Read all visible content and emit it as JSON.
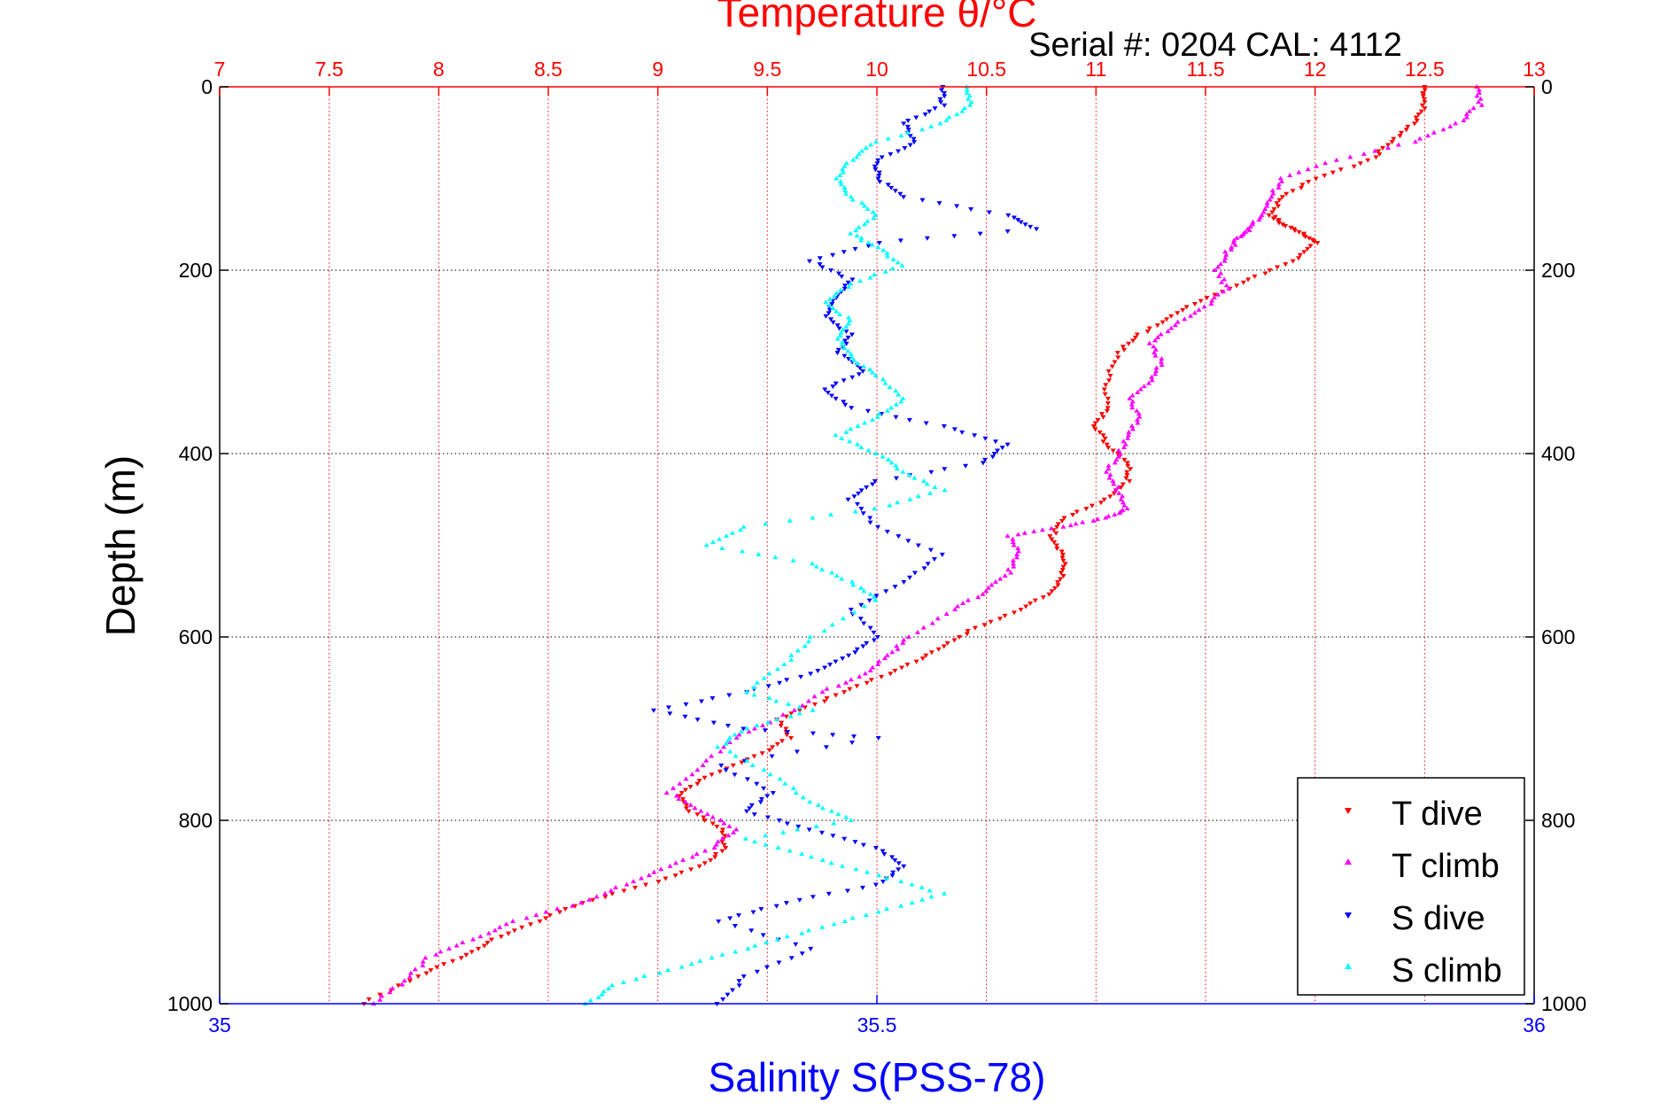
{
  "chart_data": {
    "type": "scatter",
    "title": "Temperature θ/°C",
    "serial_label": "Serial #: 0204  CAL: 4112",
    "xlabel_top": "Temperature θ/°C",
    "xlabel_bottom": "Salinity S(PSS-78)",
    "ylabel": "Depth (m)",
    "x_top_lim": [
      7,
      13
    ],
    "x_top_ticks": [
      "7",
      "7.5",
      "8",
      "8.5",
      "9",
      "9.5",
      "10",
      "10.5",
      "11",
      "11.5",
      "12",
      "12.5",
      "13"
    ],
    "x_bottom_lim": [
      35,
      36
    ],
    "x_bottom_ticks": [
      "35",
      "35.5",
      "36"
    ],
    "ylim": [
      0,
      1000
    ],
    "y_ticks": [
      "0",
      "200",
      "400",
      "600",
      "800",
      "1000"
    ],
    "y_reversed": true,
    "grid": true,
    "legend_position": "bottom-right",
    "colors": {
      "T_dive": "#ff0000",
      "T_climb": "#ff00ff",
      "S_dive": "#0000ff",
      "S_climb": "#00ffff",
      "top_axis": "#ff0000",
      "bottom_axis": "#0000ff"
    },
    "series": [
      {
        "name": "T dive",
        "axis": "temperature",
        "marker": "down-triangle",
        "x": [
          12.5,
          12.5,
          12.45,
          12.35,
          12.25,
          12.0,
          11.85,
          11.8,
          11.85,
          11.95,
          12.0,
          11.9,
          11.7,
          11.5,
          11.35,
          11.2,
          11.1,
          11.05,
          11.05,
          11.0,
          11.05,
          11.15,
          11.15,
          11.05,
          10.85,
          10.8,
          10.85,
          10.85,
          10.8,
          10.65,
          10.45,
          10.3,
          10.15,
          9.95,
          9.75,
          9.55,
          9.6,
          9.45,
          9.25,
          9.1,
          9.15,
          9.3,
          9.3,
          9.2,
          8.95,
          8.65,
          8.45,
          8.25,
          8.1,
          7.9,
          7.65
        ],
        "y": [
          0,
          20,
          40,
          60,
          80,
          100,
          120,
          140,
          150,
          160,
          170,
          190,
          210,
          230,
          250,
          270,
          290,
          320,
          350,
          370,
          390,
          410,
          430,
          450,
          470,
          490,
          510,
          530,
          550,
          570,
          590,
          610,
          630,
          650,
          670,
          690,
          710,
          730,
          750,
          770,
          790,
          810,
          830,
          850,
          870,
          890,
          910,
          930,
          950,
          970,
          1000
        ]
      },
      {
        "name": "T climb",
        "axis": "temperature",
        "marker": "up-triangle",
        "x": [
          12.75,
          12.75,
          12.65,
          12.45,
          12.1,
          11.85,
          11.8,
          11.75,
          11.7,
          11.65,
          11.6,
          11.55,
          11.6,
          11.5,
          11.35,
          11.25,
          11.3,
          11.25,
          11.15,
          11.2,
          11.15,
          11.1,
          11.05,
          11.1,
          11.15,
          11.05,
          10.85,
          10.6,
          10.65,
          10.6,
          10.5,
          10.35,
          10.15,
          10.05,
          9.95,
          9.75,
          9.55,
          9.35,
          9.2,
          9.05,
          9.2,
          9.35,
          9.25,
          9.05,
          8.85,
          8.65,
          8.35,
          8.15,
          7.95,
          7.85,
          7.7
        ],
        "y": [
          0,
          20,
          40,
          60,
          80,
          100,
          120,
          140,
          155,
          165,
          180,
          200,
          220,
          240,
          260,
          280,
          300,
          320,
          340,
          360,
          380,
          400,
          420,
          440,
          460,
          470,
          480,
          490,
          510,
          530,
          550,
          570,
          600,
          620,
          640,
          660,
          690,
          710,
          740,
          770,
          790,
          810,
          830,
          850,
          870,
          890,
          910,
          930,
          950,
          975,
          1000
        ]
      },
      {
        "name": "S dive",
        "axis": "salinity",
        "marker": "down-triangle",
        "x": [
          35.55,
          35.55,
          35.52,
          35.53,
          35.5,
          35.5,
          35.52,
          35.6,
          35.62,
          35.5,
          35.45,
          35.48,
          35.47,
          35.46,
          35.48,
          35.47,
          35.49,
          35.46,
          35.48,
          35.55,
          35.6,
          35.58,
          35.5,
          35.48,
          35.5,
          35.55,
          35.52,
          35.48,
          35.5,
          35.48,
          35.45,
          35.4,
          35.33,
          35.4,
          35.5,
          35.38,
          35.42,
          35.4,
          35.45,
          35.5,
          35.52,
          35.5,
          35.43,
          35.38,
          35.45,
          35.4,
          35.38
        ],
        "y": [
          0,
          20,
          40,
          60,
          80,
          100,
          120,
          140,
          155,
          170,
          190,
          210,
          230,
          250,
          270,
          290,
          310,
          330,
          350,
          370,
          390,
          410,
          430,
          450,
          480,
          510,
          540,
          570,
          600,
          620,
          640,
          660,
          680,
          700,
          710,
          740,
          770,
          790,
          810,
          830,
          850,
          870,
          890,
          910,
          940,
          970,
          1000
        ]
      },
      {
        "name": "S climb",
        "axis": "salinity",
        "marker": "up-triangle",
        "x": [
          35.57,
          35.57,
          35.55,
          35.5,
          35.48,
          35.47,
          35.48,
          35.5,
          35.48,
          35.5,
          35.52,
          35.48,
          35.46,
          35.48,
          35.47,
          35.48,
          35.5,
          35.52,
          35.5,
          35.47,
          35.5,
          35.52,
          35.55,
          35.5,
          35.4,
          35.37,
          35.45,
          35.48,
          35.5,
          35.45,
          35.43,
          35.4,
          35.45,
          35.4,
          35.38,
          35.42,
          35.45,
          35.48,
          35.4,
          35.45,
          35.5,
          35.55,
          35.5,
          35.45,
          35.4,
          35.35,
          35.3,
          35.28
        ],
        "y": [
          0,
          20,
          40,
          60,
          80,
          100,
          120,
          140,
          160,
          175,
          195,
          215,
          235,
          255,
          275,
          295,
          315,
          340,
          360,
          380,
          400,
          420,
          440,
          460,
          480,
          500,
          520,
          540,
          560,
          600,
          630,
          660,
          680,
          700,
          720,
          750,
          780,
          800,
          820,
          840,
          860,
          880,
          900,
          920,
          940,
          960,
          980,
          1000
        ]
      }
    ]
  }
}
